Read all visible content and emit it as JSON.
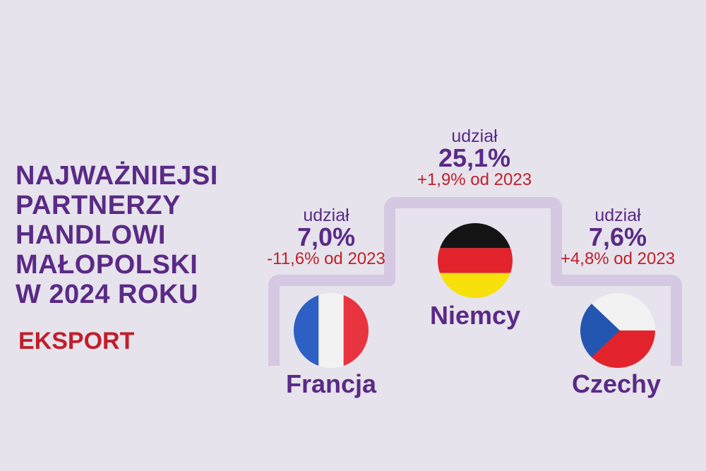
{
  "title_lines": [
    "NAJWAŻNIEJSI",
    "PARTNERZY",
    "HANDLOWI",
    "MAŁOPOLSKI",
    "W 2024 ROKU"
  ],
  "subtitle": "EKSPORT",
  "partners": [
    {
      "country": "Francja",
      "share_label": "udział",
      "share": "7,0%",
      "change": "-11,6% od 2023",
      "flag": "france-flag-icon"
    },
    {
      "country": "Niemcy",
      "share_label": "udział",
      "share": "25,1%",
      "change": "+1,9% od 2023",
      "flag": "germany-flag-icon"
    },
    {
      "country": "Czechy",
      "share_label": "udział",
      "share": "7,6%",
      "change": "+4,8% od 2023",
      "flag": "czech-flag-icon"
    }
  ],
  "colors": {
    "purple": "#5a2a86",
    "red": "#c01f2a",
    "podium": "#d5c8e3",
    "background": "#e6e3ec"
  }
}
